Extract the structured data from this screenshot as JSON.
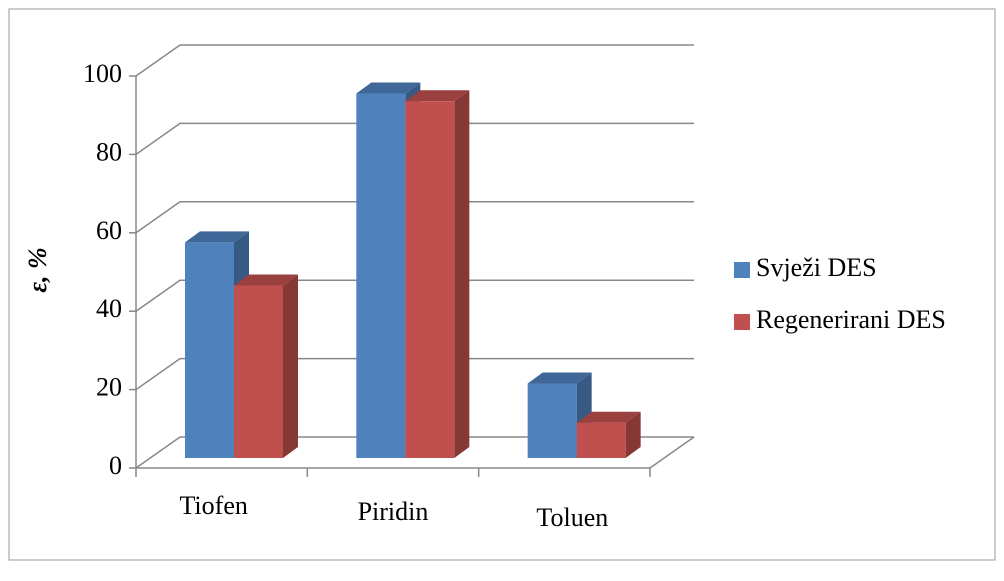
{
  "chart_data": {
    "type": "bar3d",
    "y_label": "ε, %",
    "categories": [
      "Tiofen",
      "Piridin",
      "Toluen"
    ],
    "series": [
      {
        "name": "Svježi DES",
        "color": "#4f81bd",
        "values": [
          55,
          93,
          19
        ]
      },
      {
        "name": "Regenerirani DES",
        "color": "#c0504d",
        "values": [
          44,
          91,
          9
        ]
      }
    ],
    "ylim": [
      0,
      100
    ],
    "yticks": [
      0,
      20,
      40,
      60,
      80,
      100
    ],
    "grid": true,
    "legend": "right"
  }
}
